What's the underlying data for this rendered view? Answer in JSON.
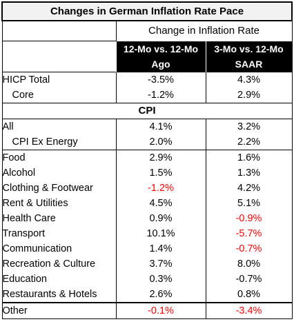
{
  "chart_data": {
    "type": "table",
    "title": "Changes in German Inflation Rate Pace",
    "subtitle": "Change in Inflation Rate",
    "columns": [
      {
        "line1": "12-Mo vs. 12-Mo",
        "line2": "Ago"
      },
      {
        "line1": "3-Mo vs. 12-Mo",
        "line2": "SAAR"
      }
    ],
    "section_label": "CPI",
    "hicp_rows": [
      {
        "label": "HICP Total",
        "indent": false,
        "values": [
          "-3.5%",
          "4.3%"
        ],
        "negative": [
          false,
          false
        ]
      },
      {
        "label": "Core",
        "indent": true,
        "values": [
          "-1.2%",
          "2.9%"
        ],
        "negative": [
          false,
          false
        ]
      }
    ],
    "cpi_all_rows": [
      {
        "label": "All",
        "indent": false,
        "values": [
          "4.1%",
          "3.2%"
        ],
        "negative": [
          false,
          false
        ]
      },
      {
        "label": "CPI Ex Energy",
        "indent": true,
        "values": [
          "2.0%",
          "2.2%"
        ],
        "negative": [
          false,
          false
        ]
      }
    ],
    "category_rows": [
      {
        "label": "Food",
        "indent": false,
        "values": [
          "2.9%",
          "1.6%"
        ],
        "negative": [
          false,
          false
        ]
      },
      {
        "label": "Alcohol",
        "indent": false,
        "values": [
          "1.5%",
          "1.3%"
        ],
        "negative": [
          false,
          false
        ]
      },
      {
        "label": "Clothing & Footwear",
        "indent": false,
        "values": [
          "-1.2%",
          "4.2%"
        ],
        "negative": [
          true,
          false
        ]
      },
      {
        "label": "Rent & Utilities",
        "indent": false,
        "values": [
          "4.5%",
          "5.1%"
        ],
        "negative": [
          false,
          false
        ]
      },
      {
        "label": "Health Care",
        "indent": false,
        "values": [
          "0.9%",
          "-0.9%"
        ],
        "negative": [
          false,
          true
        ]
      },
      {
        "label": "Transport",
        "indent": false,
        "values": [
          "10.1%",
          "-5.7%"
        ],
        "negative": [
          false,
          true
        ]
      },
      {
        "label": "Communication",
        "indent": false,
        "values": [
          "1.4%",
          "-0.7%"
        ],
        "negative": [
          false,
          true
        ]
      },
      {
        "label": "Recreation & Culture",
        "indent": false,
        "values": [
          "3.7%",
          "8.0%"
        ],
        "negative": [
          false,
          false
        ]
      },
      {
        "label": "Education",
        "indent": false,
        "values": [
          "0.3%",
          "-0.7%"
        ],
        "negative": [
          false,
          false
        ]
      },
      {
        "label": "Restaurants & Hotels",
        "indent": false,
        "values": [
          "2.6%",
          "0.8%"
        ],
        "negative": [
          false,
          false
        ]
      }
    ],
    "other_row": {
      "label": "Other",
      "indent": false,
      "values": [
        "-0.1%",
        "-3.4%"
      ],
      "negative": [
        true,
        true
      ]
    }
  },
  "colors": {
    "negative": "#ff0000",
    "header_bg": "#000000",
    "header_text": "#ffffff",
    "title_bg": "#f2f2f2"
  }
}
